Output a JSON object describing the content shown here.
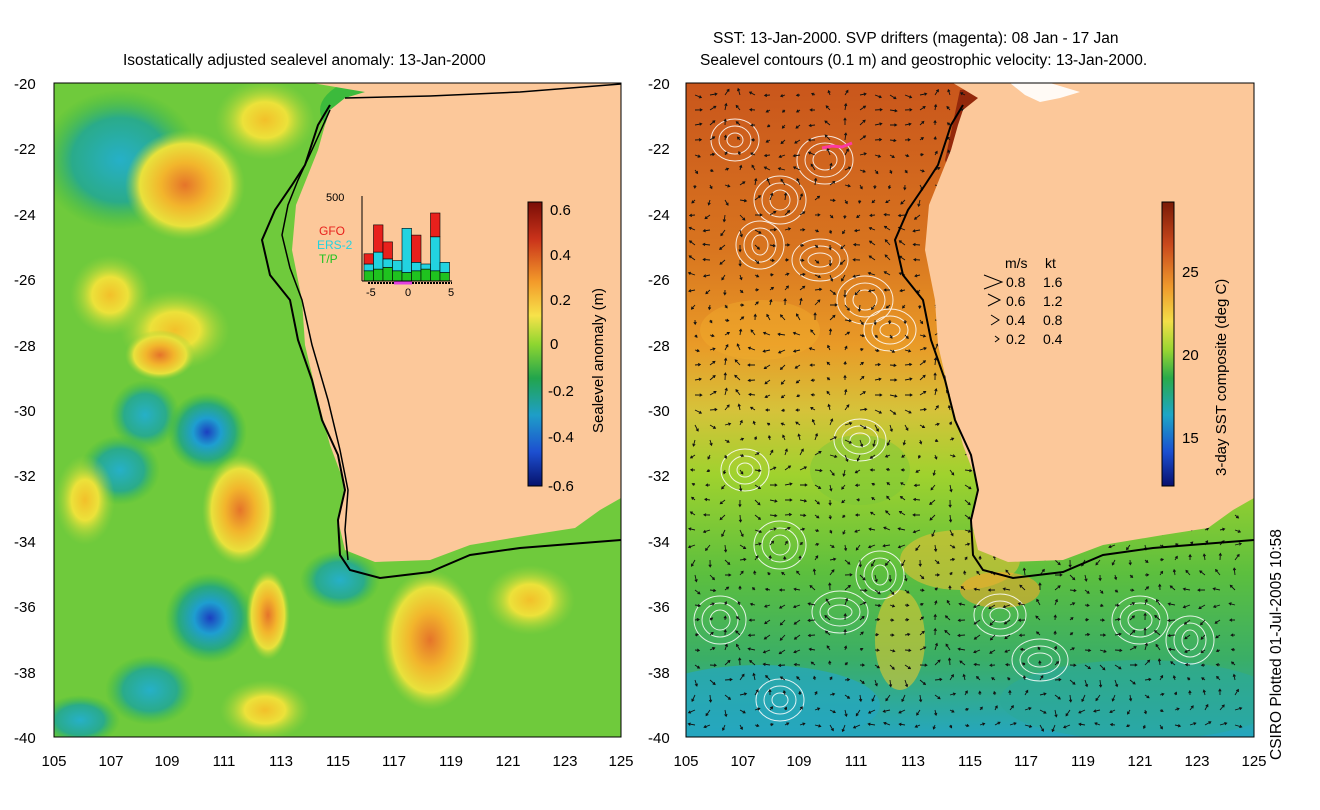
{
  "left_panel": {
    "title": "Isostatically adjusted sealevel anomaly: 13-Jan-2000",
    "x_ticks": [
      "105",
      "107",
      "109",
      "111",
      "113",
      "115",
      "117",
      "119",
      "121",
      "123",
      "125"
    ],
    "y_ticks": [
      "-20",
      "-22",
      "-24",
      "-26",
      "-28",
      "-30",
      "-32",
      "-34",
      "-36",
      "-38",
      "-40"
    ],
    "colorbar": {
      "label": "Sealevel anomaly (m)",
      "ticks": [
        "0.6",
        "0.4",
        "0.2",
        "0",
        "-0.2",
        "-0.4",
        "-0.6"
      ],
      "colors": [
        "#7a0d06",
        "#c9321a",
        "#f39a2a",
        "#f7e24a",
        "#8fd630",
        "#22a54c",
        "#1e9ec8",
        "#1d4fd0",
        "#06126c"
      ]
    },
    "inset": {
      "ymax_label": "500",
      "legend": [
        {
          "label": "GFO",
          "color": "#e8201c"
        },
        {
          "label": "ERS-2",
          "color": "#22d3e0"
        },
        {
          "label": "T/P",
          "color": "#1fc21f"
        }
      ],
      "x_ticks": [
        "-5",
        "0",
        "5"
      ],
      "bars": [
        {
          "tp": 60,
          "ers": 40,
          "gfo": 60
        },
        {
          "tp": 70,
          "ers": 100,
          "gfo": 160
        },
        {
          "tp": 80,
          "ers": 50,
          "gfo": 100
        },
        {
          "tp": 60,
          "ers": 60,
          "gfo": 0
        },
        {
          "tp": 50,
          "ers": 260,
          "gfo": 0
        },
        {
          "tp": 60,
          "ers": 50,
          "gfo": 160
        },
        {
          "tp": 70,
          "ers": 30,
          "gfo": 0
        },
        {
          "tp": 60,
          "ers": 200,
          "gfo": 140
        },
        {
          "tp": 50,
          "ers": 60,
          "gfo": 0
        }
      ]
    }
  },
  "right_panel": {
    "title_line1": "SST: 13-Jan-2000. SVP drifters (magenta): 08 Jan - 17 Jan",
    "title_line2": "Sealevel contours (0.1 m) and geostrophic velocity: 13-Jan-2000.",
    "x_ticks": [
      "105",
      "107",
      "109",
      "111",
      "113",
      "115",
      "117",
      "119",
      "121",
      "123",
      "125"
    ],
    "y_ticks": [
      "-20",
      "-22",
      "-24",
      "-26",
      "-28",
      "-30",
      "-32",
      "-34",
      "-36",
      "-38",
      "-40"
    ],
    "colorbar": {
      "label": "3-day SST composite (deg C)",
      "ticks": [
        "25",
        "20",
        "15"
      ],
      "colors": [
        "#7a1a06",
        "#c9481c",
        "#ef9a2c",
        "#f3de48",
        "#9ad632",
        "#2aaa4a",
        "#1ea6c6",
        "#1b4fd0",
        "#08106e"
      ]
    },
    "velocity_legend": {
      "header_ms": "m/s",
      "header_kt": "kt",
      "rows": [
        {
          "ms": "0.8",
          "kt": "1.6"
        },
        {
          "ms": "0.6",
          "kt": "1.2"
        },
        {
          "ms": "0.4",
          "kt": "0.8"
        },
        {
          "ms": "0.2",
          "kt": "0.4"
        }
      ]
    }
  },
  "colors": {
    "land": "#fcc89a",
    "ocean_green": "#3cba3c"
  },
  "credit": "CSIRO Plotted 01-Jul-2005 10:58"
}
